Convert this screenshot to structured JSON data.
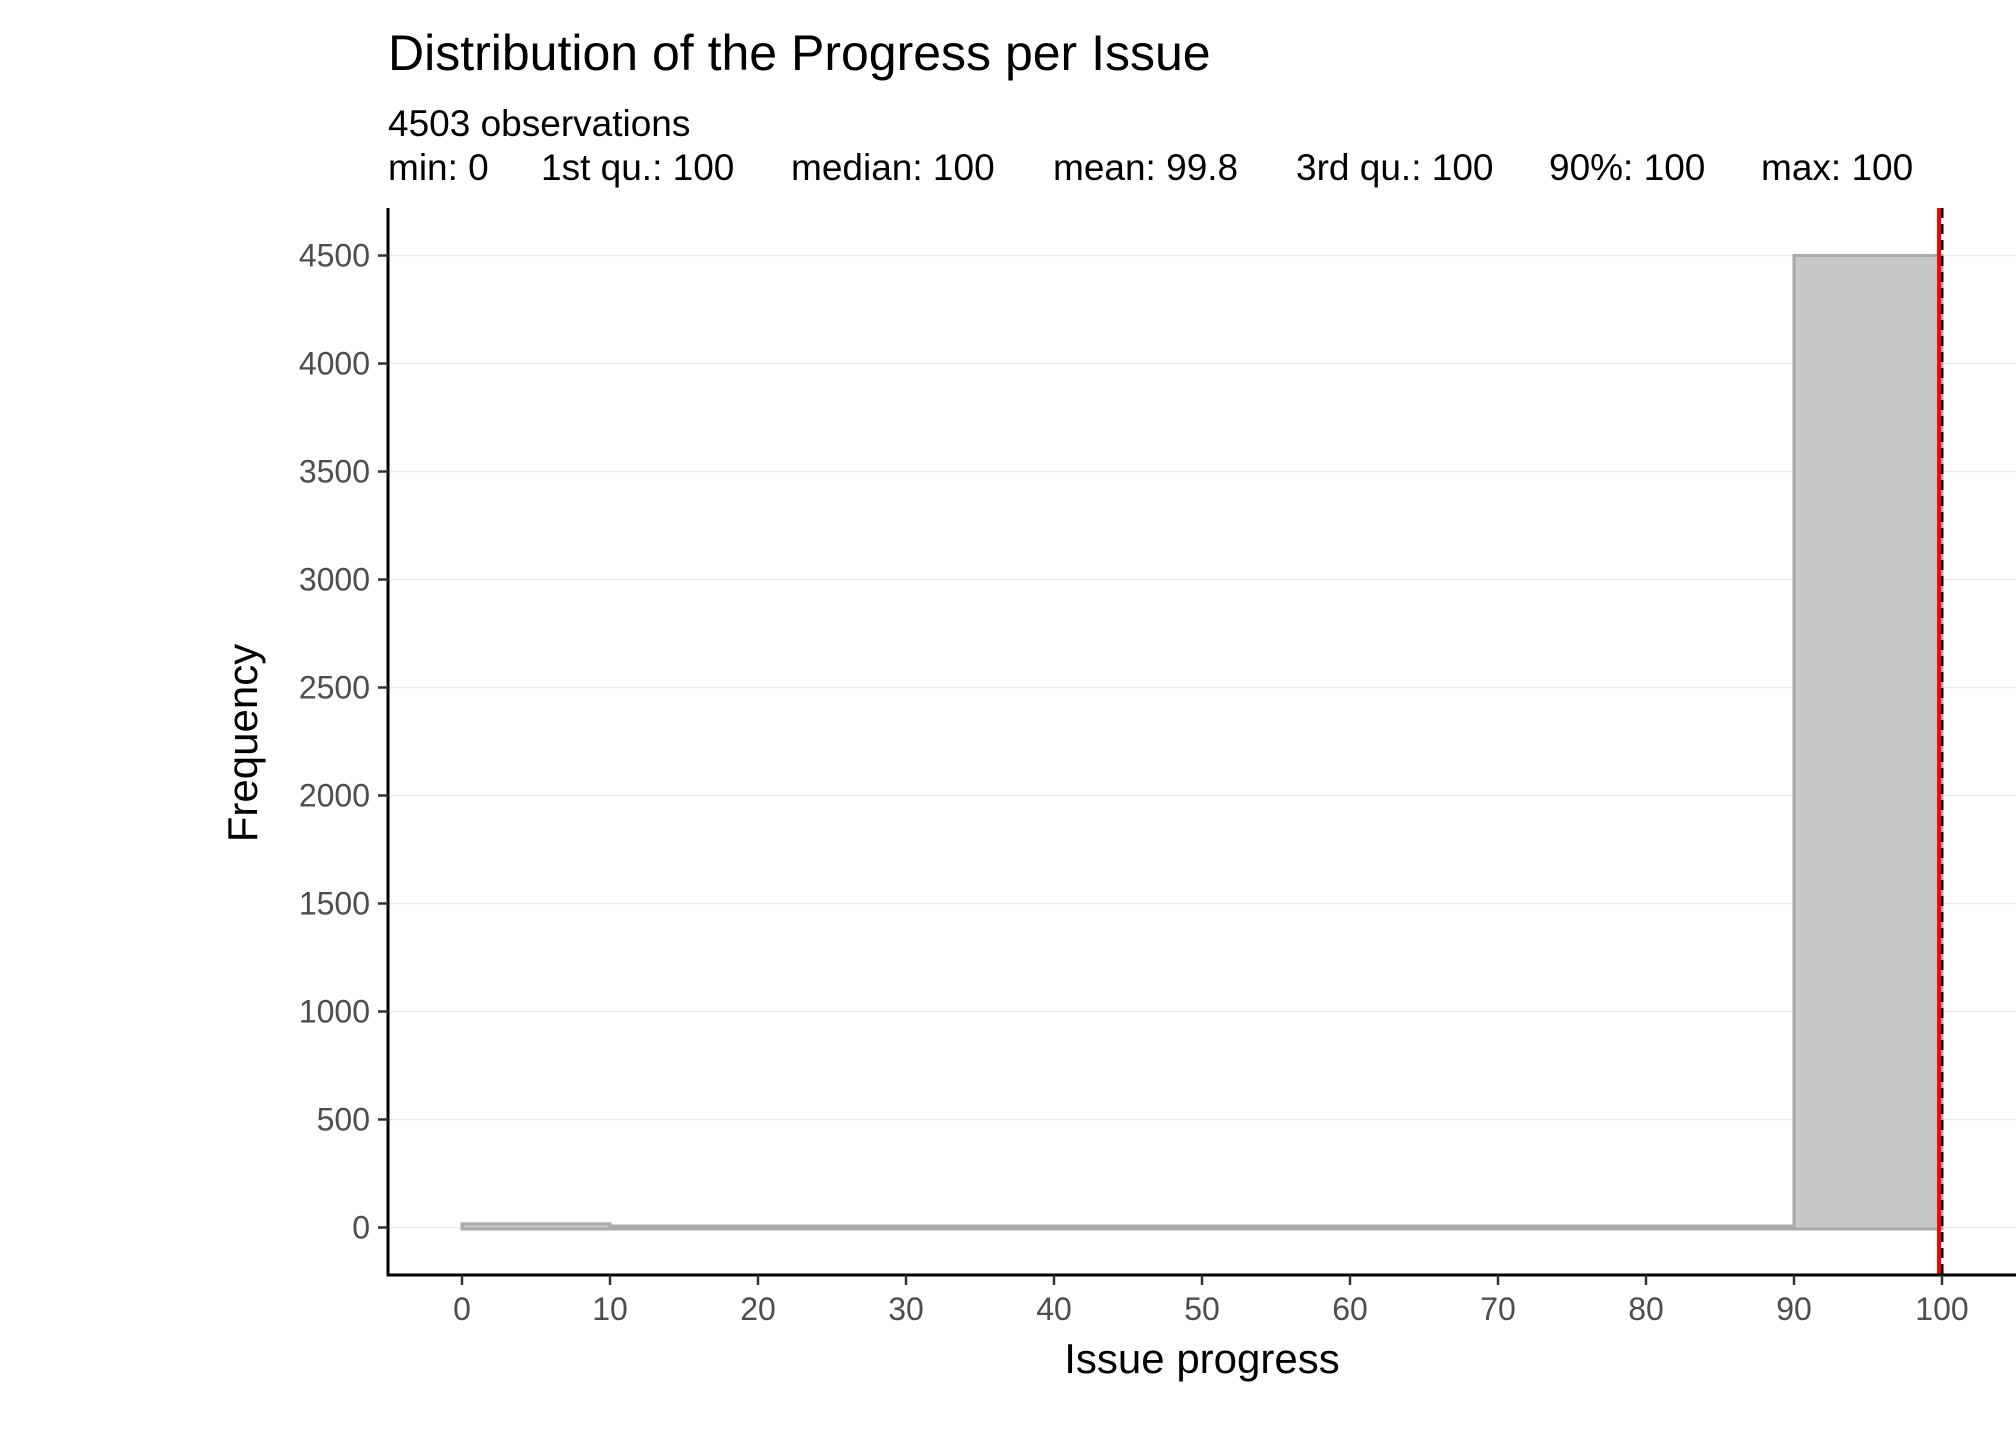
{
  "chart_data": {
    "type": "bar",
    "title": "Distribution of the Progress per Issue",
    "subtitle_observations": "4503 observations",
    "subtitle_stats": [
      "min: 0",
      "1st qu.: 100",
      "median: 100",
      "mean: 99.8",
      "3rd qu.: 100",
      "90%: 100",
      "max: 100"
    ],
    "xlabel": "Issue progress",
    "ylabel": "Frequency",
    "xlim": [
      -5,
      105
    ],
    "ylim": [
      -220,
      4720
    ],
    "x_ticks": [
      0,
      10,
      20,
      30,
      40,
      50,
      60,
      70,
      80,
      90,
      100
    ],
    "y_ticks": [
      0,
      500,
      1000,
      1500,
      2000,
      2500,
      3000,
      3500,
      4000,
      4500
    ],
    "bins": [
      {
        "start": 0,
        "end": 10,
        "count": 10
      },
      {
        "start": 10,
        "end": 20,
        "count": 0
      },
      {
        "start": 20,
        "end": 30,
        "count": 0
      },
      {
        "start": 30,
        "end": 40,
        "count": 0
      },
      {
        "start": 40,
        "end": 50,
        "count": 0
      },
      {
        "start": 50,
        "end": 60,
        "count": 0
      },
      {
        "start": 60,
        "end": 70,
        "count": 0
      },
      {
        "start": 70,
        "end": 80,
        "count": 0
      },
      {
        "start": 80,
        "end": 90,
        "count": 0
      },
      {
        "start": 90,
        "end": 100,
        "count": 4493
      }
    ],
    "mean_line": 99.8,
    "median_line": 100,
    "grid": {
      "horizontal": true,
      "vertical": false
    },
    "colors": {
      "bar_fill": "#c8c8c8",
      "bar_stroke": "#aaaaaa",
      "mean_line": "#ff0000",
      "median_line": "#000000",
      "grid": "#ebebeb",
      "axis": "#000000"
    }
  }
}
